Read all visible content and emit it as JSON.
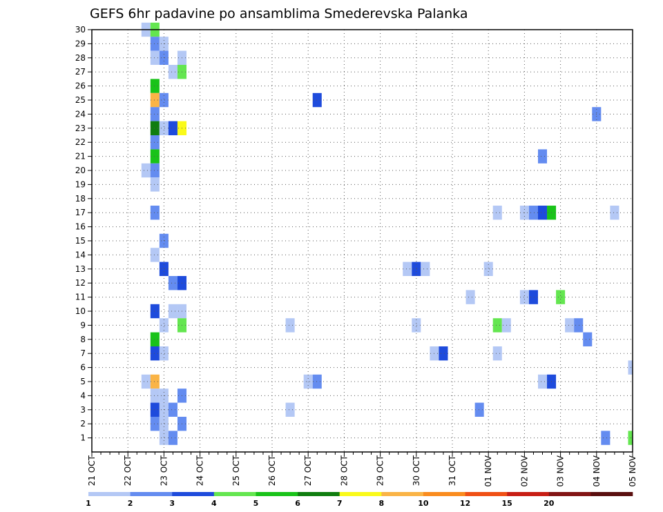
{
  "chart_data": {
    "type": "heatmap",
    "title": "GEFS 6hr padavine po ansamblima Smederevska Palanka",
    "x_tick_labels": [
      "21 OCT",
      "22 OCT",
      "23 OCT",
      "24 OCT",
      "25 OCT",
      "26 OCT",
      "27 OCT",
      "28 OCT",
      "29 OCT",
      "30 OCT",
      "31 OCT",
      "01 NOV",
      "02 NOV",
      "03 NOV",
      "04 NOV",
      "05 NOV"
    ],
    "y_tick_labels": [
      "1",
      "2",
      "3",
      "4",
      "5",
      "6",
      "7",
      "8",
      "9",
      "10",
      "11",
      "12",
      "13",
      "14",
      "15",
      "16",
      "17",
      "18",
      "19",
      "20",
      "21",
      "22",
      "23",
      "24",
      "25",
      "26",
      "27",
      "28",
      "29",
      "30"
    ],
    "x_range_steps": [
      0,
      60
    ],
    "y_range_members": [
      0,
      30
    ],
    "grid": true,
    "legend_position": "bottom",
    "legend_levels": [
      "1",
      "2",
      "3",
      "4",
      "5",
      "6",
      "7",
      "8",
      "10",
      "12",
      "15",
      "20"
    ],
    "legend_colors": [
      "#b4c8f5",
      "#648cf0",
      "#1e4bdc",
      "#64e650",
      "#19c319",
      "#0f7d0f",
      "#fafa19",
      "#fab446",
      "#fa8c1e",
      "#f05014",
      "#c81e14",
      "#821414",
      "#5a0f0f"
    ],
    "cells": [
      [
        6,
        30,
        0
      ],
      [
        7,
        30,
        3
      ],
      [
        7,
        29,
        1
      ],
      [
        8,
        29,
        0
      ],
      [
        7,
        28,
        0
      ],
      [
        8,
        28,
        1
      ],
      [
        10,
        28,
        0
      ],
      [
        9,
        27,
        0
      ],
      [
        10,
        27,
        3
      ],
      [
        7,
        26,
        4
      ],
      [
        7,
        25,
        7
      ],
      [
        8,
        25,
        1
      ],
      [
        25,
        25,
        2
      ],
      [
        7,
        24,
        1
      ],
      [
        56,
        24,
        1
      ],
      [
        7,
        23,
        5
      ],
      [
        8,
        23,
        0
      ],
      [
        9,
        23,
        2
      ],
      [
        10,
        23,
        6
      ],
      [
        7,
        22,
        1
      ],
      [
        7,
        21,
        4
      ],
      [
        50,
        21,
        1
      ],
      [
        6,
        20,
        0
      ],
      [
        7,
        20,
        1
      ],
      [
        7,
        19,
        0
      ],
      [
        7,
        17,
        1
      ],
      [
        45,
        17,
        0
      ],
      [
        48,
        17,
        0
      ],
      [
        49,
        17,
        1
      ],
      [
        50,
        17,
        2
      ],
      [
        51,
        17,
        4
      ],
      [
        58,
        17,
        0
      ],
      [
        8,
        15,
        1
      ],
      [
        7,
        14,
        0
      ],
      [
        8,
        13,
        2
      ],
      [
        35,
        13,
        0
      ],
      [
        36,
        13,
        2
      ],
      [
        37,
        13,
        0
      ],
      [
        44,
        13,
        0
      ],
      [
        9,
        12,
        1
      ],
      [
        10,
        12,
        2
      ],
      [
        42,
        11,
        0
      ],
      [
        48,
        11,
        0
      ],
      [
        49,
        11,
        2
      ],
      [
        52,
        11,
        3
      ],
      [
        7,
        10,
        2
      ],
      [
        9,
        10,
        0
      ],
      [
        10,
        10,
        0
      ],
      [
        8,
        9,
        0
      ],
      [
        10,
        9,
        3
      ],
      [
        22,
        9,
        0
      ],
      [
        36,
        9,
        0
      ],
      [
        45,
        9,
        3
      ],
      [
        46,
        9,
        0
      ],
      [
        53,
        9,
        0
      ],
      [
        54,
        9,
        1
      ],
      [
        7,
        8,
        4
      ],
      [
        55,
        8,
        1
      ],
      [
        7,
        7,
        2
      ],
      [
        8,
        7,
        0
      ],
      [
        38,
        7,
        0
      ],
      [
        39,
        7,
        2
      ],
      [
        45,
        7,
        0
      ],
      [
        60,
        6,
        0
      ],
      [
        6,
        5,
        0
      ],
      [
        7,
        5,
        7
      ],
      [
        24,
        5,
        0
      ],
      [
        25,
        5,
        1
      ],
      [
        50,
        5,
        0
      ],
      [
        51,
        5,
        2
      ],
      [
        7,
        4,
        0
      ],
      [
        8,
        4,
        0
      ],
      [
        10,
        4,
        1
      ],
      [
        7,
        3,
        2
      ],
      [
        8,
        3,
        0
      ],
      [
        9,
        3,
        1
      ],
      [
        22,
        3,
        0
      ],
      [
        43,
        3,
        1
      ],
      [
        7,
        2,
        1
      ],
      [
        8,
        2,
        0
      ],
      [
        10,
        2,
        1
      ],
      [
        8,
        1,
        0
      ],
      [
        9,
        1,
        1
      ],
      [
        57,
        1,
        1
      ],
      [
        60,
        1,
        3
      ]
    ]
  }
}
